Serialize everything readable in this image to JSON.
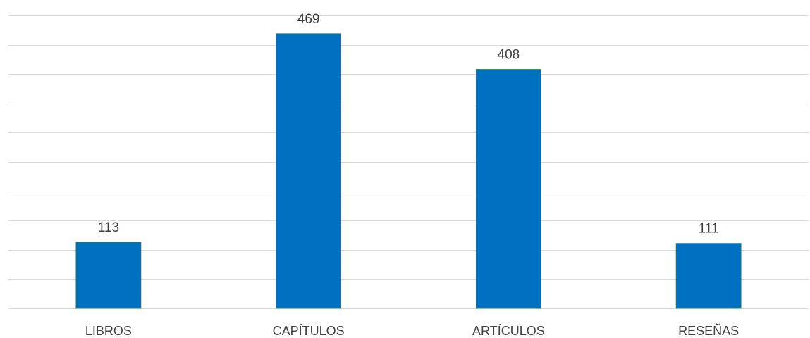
{
  "chart_data": {
    "type": "bar",
    "categories": [
      "LIBROS",
      "CAPÍTULOS",
      "ARTÍCULOS",
      "RESEÑAS"
    ],
    "values": [
      113,
      469,
      408,
      111
    ],
    "title": "",
    "xlabel": "",
    "ylabel": "",
    "ylim": [
      0,
      500
    ],
    "grid": true,
    "legend": "none",
    "colors": {
      "bar": "#0070c0",
      "bar_outline": "#2e7d32",
      "grid": "#d9d9d9",
      "text": "#404040"
    }
  }
}
